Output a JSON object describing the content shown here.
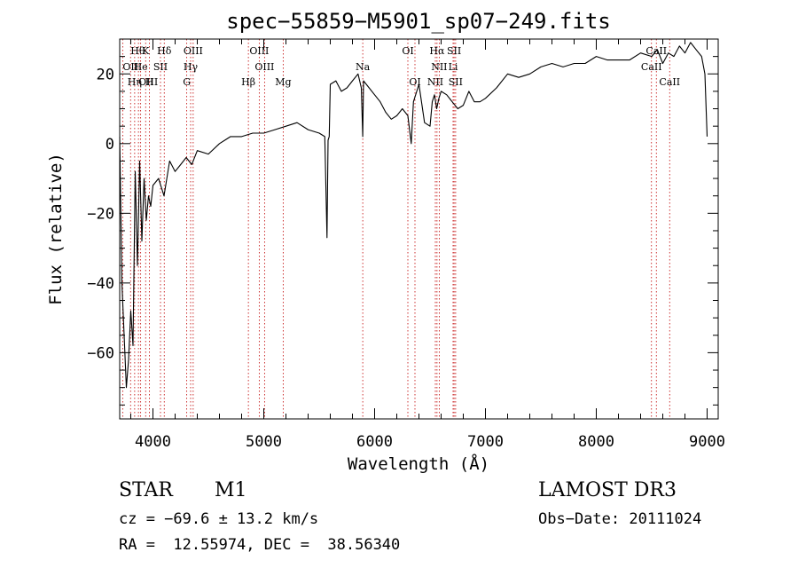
{
  "chart_data": {
    "type": "line",
    "title": "spec−55859−M5901_sp07−249.fits",
    "xlabel": "Wavelength (Å)",
    "ylabel": "Flux (relative)",
    "xlim": [
      3700,
      9100
    ],
    "ylim": [
      -79,
      30
    ],
    "x_ticks": [
      4000,
      5000,
      6000,
      7000,
      8000,
      9000
    ],
    "y_ticks": [
      -60,
      -40,
      -20,
      0,
      20
    ],
    "x_tick_labels": [
      "4000",
      "5000",
      "6000",
      "7000",
      "8000",
      "9000"
    ],
    "y_tick_labels": [
      "−60",
      "−40",
      "−20",
      "0",
      "20"
    ],
    "series": [
      {
        "name": "flux",
        "x": [
          3700,
          3720,
          3740,
          3760,
          3780,
          3800,
          3820,
          3840,
          3860,
          3880,
          3900,
          3920,
          3940,
          3960,
          3980,
          4000,
          4050,
          4100,
          4150,
          4200,
          4250,
          4300,
          4350,
          4400,
          4500,
          4600,
          4700,
          4800,
          4900,
          5000,
          5100,
          5200,
          5300,
          5400,
          5500,
          5550,
          5570,
          5580,
          5590,
          5600,
          5650,
          5700,
          5750,
          5800,
          5850,
          5880,
          5893,
          5900,
          5950,
          6000,
          6050,
          6100,
          6150,
          6200,
          6250,
          6300,
          6330,
          6350,
          6400,
          6450,
          6500,
          6520,
          6540,
          6560,
          6580,
          6600,
          6650,
          6700,
          6750,
          6800,
          6850,
          6900,
          6950,
          7000,
          7100,
          7200,
          7300,
          7400,
          7500,
          7600,
          7700,
          7800,
          7900,
          8000,
          8100,
          8200,
          8300,
          8400,
          8500,
          8550,
          8600,
          8650,
          8700,
          8750,
          8800,
          8850,
          8900,
          8950,
          8980,
          9000
        ],
        "values": [
          2,
          -40,
          -55,
          -70,
          -62,
          -48,
          -58,
          -8,
          -35,
          -5,
          -28,
          -10,
          -22,
          -15,
          -18,
          -12,
          -10,
          -15,
          -5,
          -8,
          -6,
          -4,
          -6,
          -2,
          -3,
          0,
          2,
          2,
          3,
          3,
          4,
          5,
          6,
          4,
          3,
          2,
          -27,
          1,
          2,
          17,
          18,
          15,
          16,
          18,
          20,
          16,
          2,
          18,
          16,
          14,
          12,
          9,
          7,
          8,
          10,
          8,
          0,
          12,
          17,
          6,
          5,
          12,
          14,
          10,
          13,
          15,
          14,
          12,
          10,
          11,
          15,
          12,
          12,
          13,
          16,
          20,
          19,
          20,
          22,
          23,
          22,
          23,
          23,
          25,
          24,
          24,
          24,
          26,
          25,
          27,
          23,
          26,
          25,
          28,
          26,
          29,
          27,
          25,
          20,
          2
        ]
      }
    ],
    "lines": [
      {
        "label": "Hθ",
        "x": 3798,
        "row": 0,
        "side": "left"
      },
      {
        "label": "K",
        "x": 3934,
        "row": 0,
        "side": "center"
      },
      {
        "label": "Hδ",
        "x": 4102,
        "row": 0,
        "side": "center"
      },
      {
        "label": "OIII",
        "x": 4363,
        "row": 0,
        "side": "center"
      },
      {
        "label": "OIII",
        "x": 4959,
        "row": 0,
        "side": "center"
      },
      {
        "label": "OI",
        "x": 6300,
        "row": 0,
        "side": "center"
      },
      {
        "label": "Hα",
        "x": 6563,
        "row": 0,
        "side": "center"
      },
      {
        "label": "SII",
        "x": 6717,
        "row": 0,
        "side": "center"
      },
      {
        "label": "CaII",
        "x": 8542,
        "row": 0,
        "side": "center"
      },
      {
        "label": "OII",
        "x": 3727,
        "row": 1,
        "side": "left"
      },
      {
        "label": "He",
        "x": 3889,
        "row": 1,
        "side": "center"
      },
      {
        "label": "SII",
        "x": 4068,
        "row": 1,
        "side": "center"
      },
      {
        "label": "Hγ",
        "x": 4340,
        "row": 1,
        "side": "center"
      },
      {
        "label": "OIII",
        "x": 5007,
        "row": 1,
        "side": "center"
      },
      {
        "label": "Na",
        "x": 5893,
        "row": 1,
        "side": "center"
      },
      {
        "label": "NII",
        "x": 6583,
        "row": 1,
        "side": "center"
      },
      {
        "label": "Li",
        "x": 6708,
        "row": 1,
        "side": "center"
      },
      {
        "label": "CaII",
        "x": 8498,
        "row": 1,
        "side": "center"
      },
      {
        "label": "OIII",
        "x": 3869,
        "row": 2,
        "side": "left"
      },
      {
        "label": "Hη",
        "x": 3835,
        "row": 2,
        "side": "center"
      },
      {
        "label": "H",
        "x": 3968,
        "row": 2,
        "side": "center"
      },
      {
        "label": "G",
        "x": 4305,
        "row": 2,
        "side": "center"
      },
      {
        "label": "Hβ",
        "x": 4861,
        "row": 2,
        "side": "center"
      },
      {
        "label": "Mg",
        "x": 5175,
        "row": 2,
        "side": "center"
      },
      {
        "label": "OI",
        "x": 6364,
        "row": 2,
        "side": "center"
      },
      {
        "label": "NII",
        "x": 6548,
        "row": 2,
        "side": "center"
      },
      {
        "label": "SII",
        "x": 6731,
        "row": 2,
        "side": "center"
      },
      {
        "label": "CaII",
        "x": 8662,
        "row": 2,
        "side": "center"
      }
    ],
    "grid": false,
    "legend": "none"
  },
  "info": {
    "object_class": "STAR",
    "subclass": "M1",
    "survey": "LAMOST DR3",
    "redshift": "cz = −69.6 ± 13.2 km/s",
    "obs_date": "Obs−Date: 20111024",
    "coords": "RA =  12.55974, DEC =  38.56340"
  },
  "colors": {
    "line_marker": "#c00000",
    "spectrum": "#000000",
    "axes": "#000000"
  }
}
